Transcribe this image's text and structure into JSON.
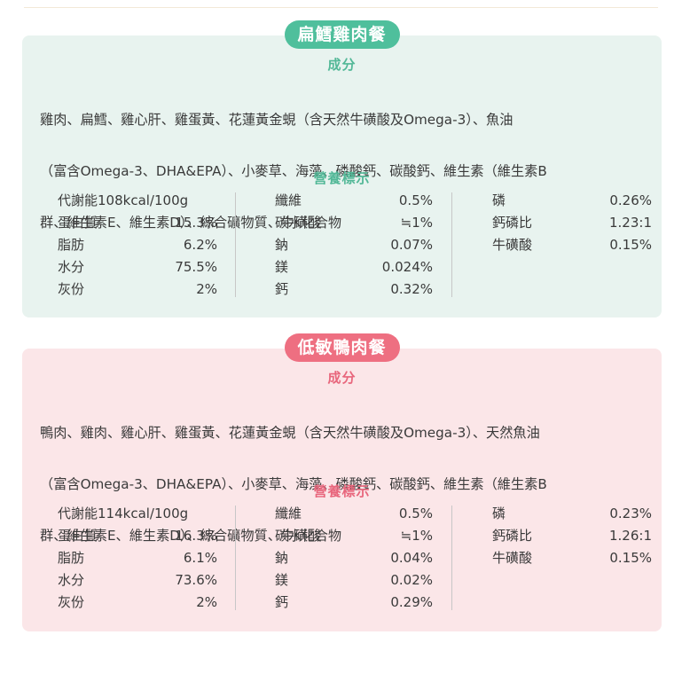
{
  "panels": [
    {
      "name": "扁鱈雞肉餐",
      "ingredients_title": "成分",
      "ingredients_lines": [
        "雞肉、扁鱈、雞心肝、雞蛋黃、花蓮黃金蜆（含天然牛磺酸及Omega-3）、魚油",
        "（富含Omega-3、DHA&EPA）、小麥草、海藻、磷酸鈣、碳酸鈣、維生素（維生素B",
        "群、維生素E、維生素D）、綜合礦物質、牛磺酸"
      ],
      "nutrition_title": "營養標示",
      "col1": [
        {
          "label": "代謝能108kcal/100g",
          "value": ""
        },
        {
          "label": "蛋白質",
          "value": "15.3%"
        },
        {
          "label": "脂肪",
          "value": "6.2%"
        },
        {
          "label": "水分",
          "value": "75.5%"
        },
        {
          "label": "灰份",
          "value": "2%"
        }
      ],
      "col2": [
        {
          "label": "纖維",
          "value": "0.5%"
        },
        {
          "label": "碳水化合物",
          "value": "≒1%"
        },
        {
          "label": "鈉",
          "value": "0.07%"
        },
        {
          "label": "鎂",
          "value": "0.024%"
        },
        {
          "label": "鈣",
          "value": "0.32%"
        }
      ],
      "col3": [
        {
          "label": "磷",
          "value": "0.26%"
        },
        {
          "label": "鈣磷比",
          "value": "1.23:1"
        },
        {
          "label": "牛磺酸",
          "value": "0.15%"
        }
      ]
    },
    {
      "name": "低敏鴨肉餐",
      "ingredients_title": "成分",
      "ingredients_lines": [
        "鴨肉、雞肉、雞心肝、雞蛋黃、花蓮黃金蜆（含天然牛磺酸及Omega-3）、天然魚油",
        "（富含Omega-3、DHA&EPA）、小麥草、海藻、磷酸鈣、碳酸鈣、維生素（維生素B",
        "群、維生素E、維生素D）、綜合礦物質、牛磺酸"
      ],
      "nutrition_title": "營養標示",
      "col1": [
        {
          "label": "代謝能114kcal/100g",
          "value": ""
        },
        {
          "label": "蛋白質",
          "value": "16.3%"
        },
        {
          "label": "脂肪",
          "value": "6.1%"
        },
        {
          "label": "水分",
          "value": "73.6%"
        },
        {
          "label": "灰份",
          "value": "2%"
        }
      ],
      "col2": [
        {
          "label": "纖維",
          "value": "0.5%"
        },
        {
          "label": "碳水化合物",
          "value": "≒1%"
        },
        {
          "label": "鈉",
          "value": "0.04%"
        },
        {
          "label": "鎂",
          "value": "0.02%"
        },
        {
          "label": "鈣",
          "value": "0.29%"
        }
      ],
      "col3": [
        {
          "label": "磷",
          "value": "0.23%"
        },
        {
          "label": "鈣磷比",
          "value": "1.26:1"
        },
        {
          "label": "牛磺酸",
          "value": "0.15%"
        }
      ]
    }
  ],
  "colors": {
    "green_accent": "#4fbf9c",
    "green_bg": "#e8f3ef",
    "pink_accent": "#ee6f81",
    "pink_bg": "#fbe6e8"
  }
}
